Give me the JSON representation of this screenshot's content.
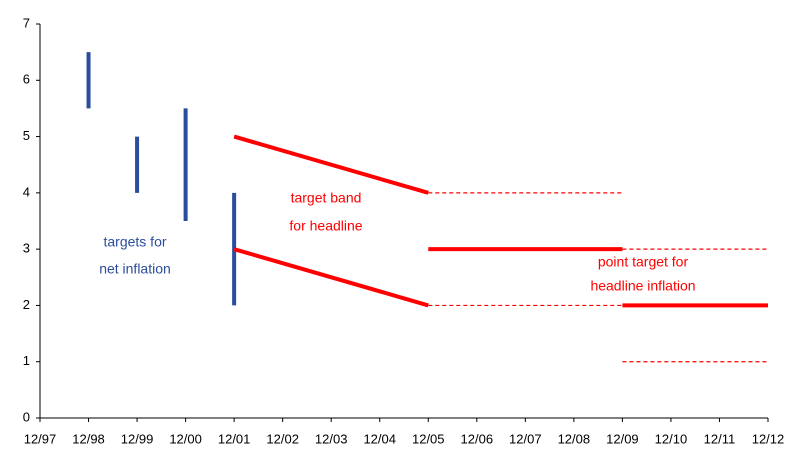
{
  "chart_data": {
    "type": "range",
    "categories": [
      "12/97",
      "12/98",
      "12/99",
      "12/00",
      "12/01",
      "12/02",
      "12/03",
      "12/04",
      "12/05",
      "12/06",
      "12/07",
      "12/08",
      "12/09",
      "12/10",
      "12/11",
      "12/12"
    ],
    "ylim": [
      0,
      7
    ],
    "yticks": [
      0,
      1,
      2,
      3,
      4,
      5,
      6,
      7
    ],
    "bars": [
      {
        "at": "12/98",
        "low": 5.5,
        "high": 6.5,
        "color": "#2b4d9d"
      },
      {
        "at": "12/99",
        "low": 4,
        "high": 5,
        "color": "#2b4d9d"
      },
      {
        "at": "12/00",
        "low": 3.5,
        "high": 5.5,
        "color": "#2b4d9d"
      },
      {
        "at": "12/01",
        "low": 2,
        "high": 4,
        "color": "#2b4d9d"
      }
    ],
    "segments": [
      {
        "from": "12/01",
        "to": "12/05",
        "values": [
          5,
          4
        ],
        "style": "solid",
        "color": "#ff0000"
      },
      {
        "from": "12/01",
        "to": "12/05",
        "values": [
          3,
          2
        ],
        "style": "solid",
        "color": "#ff0000"
      },
      {
        "from": "12/05",
        "to": "12/09",
        "values": [
          4,
          4
        ],
        "style": "dashed",
        "color": "#ff0000"
      },
      {
        "from": "12/05",
        "to": "12/09",
        "values": [
          2,
          2
        ],
        "style": "dashed",
        "color": "#ff0000"
      },
      {
        "from": "12/05",
        "to": "12/09",
        "values": [
          3,
          3
        ],
        "style": "solid",
        "color": "#ff0000"
      },
      {
        "from": "12/09",
        "to": "12/12",
        "values": [
          3,
          3
        ],
        "style": "dashed",
        "color": "#ff0000"
      },
      {
        "from": "12/09",
        "to": "12/12",
        "values": [
          2,
          2
        ],
        "style": "solid",
        "color": "#ff0000"
      },
      {
        "from": "12/09",
        "to": "12/12",
        "values": [
          1,
          1
        ],
        "style": "dashed",
        "color": "#ff0000"
      }
    ],
    "annotations": [
      {
        "lines": [
          "targets for",
          "net inflation"
        ],
        "color": "#2b4d9d"
      },
      {
        "lines": [
          "target band",
          "for headline"
        ],
        "color": "#ff0000"
      },
      {
        "lines": [
          "point target for",
          "headline inflation"
        ],
        "color": "#ff0000"
      }
    ]
  }
}
